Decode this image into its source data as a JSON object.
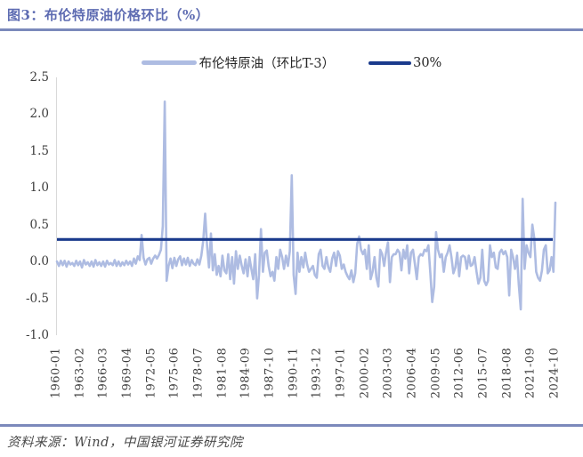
{
  "header": {
    "title": "图3：布伦特原油价格环比（%）"
  },
  "legend": {
    "series_label": "布伦特原油（环比T-3）",
    "reference_label": "30%"
  },
  "footer": {
    "source": "资料来源：Wind，中国银河证券研究院"
  },
  "colors": {
    "title": "#5e6cb2",
    "divider": "#7b89bb",
    "series": "#aebce2",
    "reference": "#1a3a8c",
    "axis_text": "#3d3d3d",
    "axis_line": "#d9d9d9"
  },
  "chart_data": {
    "type": "line",
    "title": "布伦特原油价格环比（%）",
    "xlabel": "",
    "ylabel": "",
    "ylim": [
      -1.0,
      2.5
    ],
    "y_ticks": [
      2.5,
      2.0,
      1.5,
      1.0,
      0.5,
      0.0,
      -0.5,
      -1.0
    ],
    "x_tick_labels": [
      "1960-01",
      "1963-02",
      "1966-03",
      "1969-04",
      "1972-05",
      "1975-06",
      "1978-07",
      "1981-08",
      "1984-09",
      "1987-10",
      "1990-11",
      "1993-12",
      "1997-01",
      "2000-02",
      "2003-03",
      "2006-04",
      "2009-05",
      "2012-06",
      "2015-07",
      "2018-08",
      "2021-09",
      "2024-10"
    ],
    "grid": false,
    "legend_position": "top-center",
    "reference_line": {
      "label": "30%",
      "value": 0.3
    },
    "series": [
      {
        "name": "布伦特原油（环比T-3）",
        "start": "1960-01",
        "interval_months": 3,
        "values": [
          0.0,
          -0.06,
          0.01,
          -0.05,
          0.01,
          -0.07,
          0.0,
          -0.04,
          -0.02,
          -0.06,
          0.01,
          -0.05,
          0.0,
          -0.08,
          0.02,
          -0.04,
          -0.01,
          -0.06,
          0.0,
          -0.07,
          0.02,
          -0.05,
          -0.01,
          -0.06,
          0.0,
          -0.07,
          0.01,
          -0.04,
          -0.02,
          -0.05,
          0.02,
          -0.06,
          0.0,
          -0.06,
          -0.01,
          -0.05,
          0.01,
          -0.04,
          0.0,
          -0.06,
          0.04,
          -0.03,
          0.07,
          0.02,
          0.36,
          0.05,
          -0.04,
          0.03,
          0.05,
          -0.03,
          0.04,
          0.08,
          0.04,
          0.09,
          0.16,
          0.48,
          2.17,
          -0.26,
          -0.06,
          0.04,
          -0.09,
          0.05,
          -0.06,
          0.03,
          0.07,
          -0.05,
          0.04,
          -0.04,
          0.05,
          -0.06,
          0.02,
          -0.03,
          -0.05,
          0.03,
          -0.04,
          0.08,
          0.28,
          0.65,
          0.22,
          -0.08,
          0.38,
          -0.12,
          0.1,
          -0.18,
          -0.06,
          -0.2,
          0.08,
          -0.12,
          -0.16,
          0.1,
          -0.24,
          0.06,
          -0.3,
          0.14,
          -0.1,
          0.08,
          -0.06,
          -0.16,
          0.03,
          -0.2,
          0.06,
          -0.1,
          -0.24,
          0.1,
          -0.5,
          -0.18,
          0.44,
          -0.14,
          0.12,
          0.15,
          -0.06,
          -0.2,
          -0.14,
          -0.26,
          0.06,
          -0.1,
          0.16,
          0.06,
          -0.1,
          0.08,
          -0.06,
          0.14,
          1.17,
          -0.18,
          -0.44,
          0.12,
          -0.14,
          0.06,
          -0.08,
          0.12,
          -0.04,
          -0.14,
          -0.1,
          -0.06,
          -0.18,
          -0.22,
          0.1,
          0.16,
          -0.06,
          -0.1,
          0.06,
          -0.08,
          -0.14,
          0.04,
          0.12,
          -0.06,
          0.14,
          0.08,
          -0.1,
          -0.04,
          -0.14,
          -0.2,
          -0.24,
          -0.12,
          -0.28,
          -0.16,
          0.24,
          0.34,
          0.16,
          0.1,
          0.16,
          -0.1,
          0.22,
          -0.24,
          -0.14,
          0.06,
          -0.22,
          -0.34,
          0.16,
          0.1,
          -0.06,
          0.12,
          0.26,
          -0.28,
          0.06,
          0.1,
          0.1,
          0.16,
          0.12,
          -0.12,
          0.16,
          0.04,
          0.22,
          -0.16,
          0.12,
          0.16,
          -0.04,
          -0.24,
          0.06,
          0.1,
          0.08,
          0.16,
          0.14,
          0.22,
          -0.16,
          -0.55,
          -0.34,
          0.4,
          0.16,
          0.06,
          0.1,
          -0.14,
          0.06,
          0.12,
          0.22,
          0.06,
          -0.16,
          -0.08,
          0.12,
          -0.2,
          0.06,
          0.08,
          0.06,
          -0.1,
          0.08,
          -0.06,
          -0.04,
          0.06,
          -0.14,
          -0.3,
          -0.22,
          0.16,
          -0.26,
          -0.32,
          -0.26,
          0.22,
          0.06,
          0.12,
          -0.08,
          -0.1,
          0.12,
          0.16,
          0.1,
          0.14,
          0.06,
          -0.46,
          0.16,
          0.06,
          -0.1,
          0.08,
          -0.32,
          -0.65,
          0.85,
          -0.1,
          0.22,
          0.12,
          0.06,
          0.5,
          0.32,
          -0.14,
          -0.22,
          -0.26,
          -0.12,
          0.16,
          0.22,
          -0.16,
          -0.12,
          0.06,
          -0.14,
          0.8
        ]
      }
    ]
  }
}
